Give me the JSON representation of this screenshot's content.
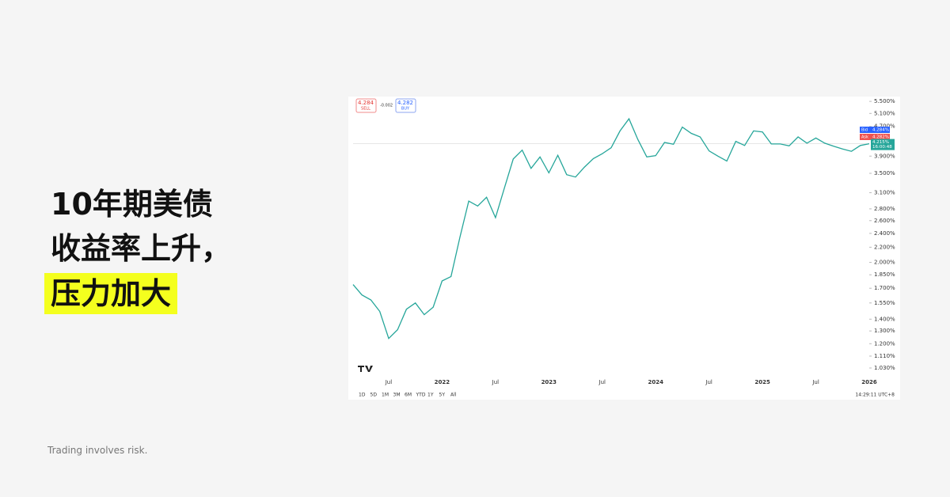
{
  "headline": {
    "line1": "10年期美债",
    "line2": "收益率上升，",
    "highlight": "压力加大"
  },
  "footer": "Trading involves risk.",
  "ui": {
    "sell_price": "4.284",
    "sell": "SELL",
    "spread": "-0.002",
    "buy_price": "4.282",
    "buy": "BUY",
    "bid": "Bid",
    "bid_value": "4.284%",
    "ask": "Ask",
    "ask_value": "4.282%",
    "ranges": [
      "1D",
      "5D",
      "1M",
      "3M",
      "6M",
      "YTD",
      "1Y",
      "5Y",
      "All"
    ],
    "clock": "14:29:11 UTC+8"
  },
  "chart_data": {
    "type": "line",
    "log_scale": true,
    "color": "#26a69a",
    "categories": [
      null,
      null,
      null,
      null,
      "Jul",
      null,
      null,
      null,
      null,
      null,
      "2022",
      null,
      null,
      null,
      null,
      null,
      "Jul",
      null,
      null,
      null,
      null,
      null,
      "2023",
      null,
      null,
      null,
      null,
      null,
      "Jul",
      null,
      null,
      null,
      null,
      null,
      "2024",
      null,
      null,
      null,
      null,
      null,
      "Jul",
      null,
      null,
      null,
      null,
      null,
      "2025",
      null,
      null,
      null,
      null,
      null,
      "Jul",
      null,
      null,
      null,
      null,
      null,
      "2026"
    ],
    "values": [
      1.74,
      1.63,
      1.58,
      1.47,
      1.24,
      1.31,
      1.49,
      1.55,
      1.44,
      1.51,
      1.78,
      1.83,
      2.34,
      2.94,
      2.85,
      3.01,
      2.65,
      3.19,
      3.83,
      4.05,
      3.61,
      3.88,
      3.51,
      3.92,
      3.47,
      3.42,
      3.64,
      3.84,
      3.96,
      4.11,
      4.57,
      4.93,
      4.33,
      3.88,
      3.91,
      4.25,
      4.2,
      4.68,
      4.5,
      4.4,
      4.03,
      3.9,
      3.78,
      4.28,
      4.17,
      4.57,
      4.54,
      4.21,
      4.21,
      4.16,
      4.4,
      4.23,
      4.37,
      4.23,
      4.15,
      4.08,
      4.02,
      4.17,
      4.215
    ],
    "last_price": {
      "value": 4.215,
      "label": "4.215%",
      "time": "16:00:48"
    },
    "ylim": [
      0.98,
      5.67
    ],
    "yticks": [
      {
        "value": 5.5,
        "label": "5.500%"
      },
      {
        "value": 5.1,
        "label": "5.100%"
      },
      {
        "value": 4.7,
        "label": "4.700%"
      },
      {
        "value": 3.9,
        "label": "3.900%"
      },
      {
        "value": 3.5,
        "label": "3.500%"
      },
      {
        "value": 3.1,
        "label": "3.100%"
      },
      {
        "value": 2.8,
        "label": "2.800%"
      },
      {
        "value": 2.6,
        "label": "2.600%"
      },
      {
        "value": 2.4,
        "label": "2.400%"
      },
      {
        "value": 2.2,
        "label": "2.200%"
      },
      {
        "value": 2,
        "label": "2.000%"
      },
      {
        "value": 1.85,
        "label": "1.850%"
      },
      {
        "value": 1.7,
        "label": "1.700%"
      },
      {
        "value": 1.55,
        "label": "1.550%"
      },
      {
        "value": 1.4,
        "label": "1.400%"
      },
      {
        "value": 1.3,
        "label": "1.300%"
      },
      {
        "value": 1.2,
        "label": "1.200%"
      },
      {
        "value": 1.11,
        "label": "1.110%"
      },
      {
        "value": 1.03,
        "label": "1.030%"
      }
    ]
  }
}
